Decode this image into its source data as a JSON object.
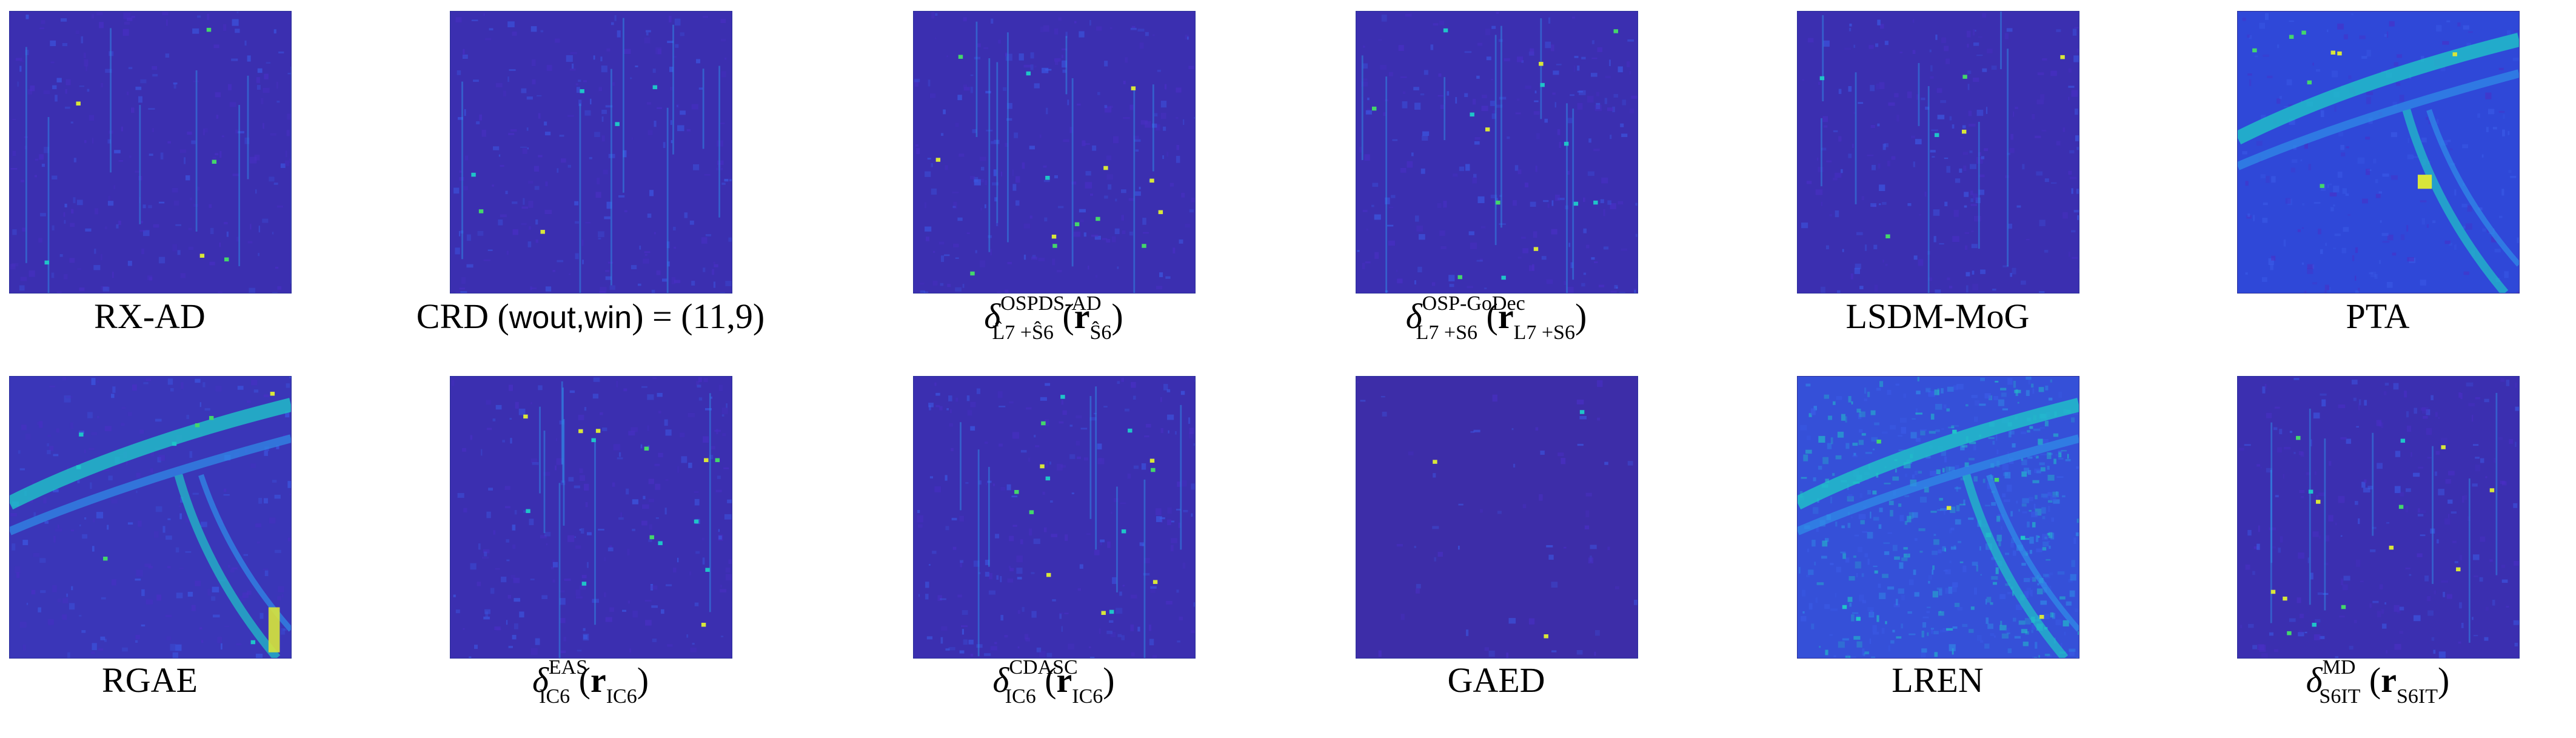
{
  "figure": {
    "panels": [
      {
        "id": "rx-ad",
        "caption": "RX-AD",
        "style": "sparse"
      },
      {
        "id": "crd",
        "caption_prefix": "CRD (",
        "caption_vars": "wout,win",
        "caption_suffix": ") = (11,9)",
        "style": "sparse"
      },
      {
        "id": "ospds-ad",
        "caption_symbol": "δ",
        "caption_sup": "OSPDS-AD",
        "caption_sub": "L̂7 +Ŝ6",
        "caption_arg_bold": "r",
        "caption_arg_sub": "Ŝ6",
        "style": "sparse_bright"
      },
      {
        "id": "osp-godec",
        "caption_symbol": "δ",
        "caption_sup": "OSP-GoDec",
        "caption_sub": "L7 +S6",
        "caption_arg_bold": "r",
        "caption_arg_sub": "L7 +S6",
        "style": "sparse_bright"
      },
      {
        "id": "lsdm-mog",
        "caption": "LSDM-MoG",
        "style": "sparse"
      },
      {
        "id": "pta",
        "caption": "PTA",
        "style": "scene"
      },
      {
        "id": "rgae",
        "caption": "RGAE",
        "style": "scene_dark"
      },
      {
        "id": "eas",
        "caption_symbol": "δ",
        "caption_sup": "EAS",
        "caption_sub": "IC6",
        "caption_arg_bold": "r",
        "caption_arg_sub": "IC6",
        "style": "sparse_bright"
      },
      {
        "id": "cdasc",
        "caption_symbol": "δ",
        "caption_sup": "CDASC",
        "caption_sub": "IC6",
        "caption_arg_bold": "r",
        "caption_arg_sub": "IC6",
        "style": "sparse_bright"
      },
      {
        "id": "gaed",
        "caption": "GAED",
        "style": "flat"
      },
      {
        "id": "lren",
        "caption": "LREN",
        "style": "noisy"
      },
      {
        "id": "md",
        "caption_symbol": "δ",
        "caption_sup": "MD",
        "caption_sub": "S6IT",
        "caption_arg_bold": "r",
        "caption_arg_sub": "S6IT",
        "style": "sparse_bright"
      }
    ]
  }
}
